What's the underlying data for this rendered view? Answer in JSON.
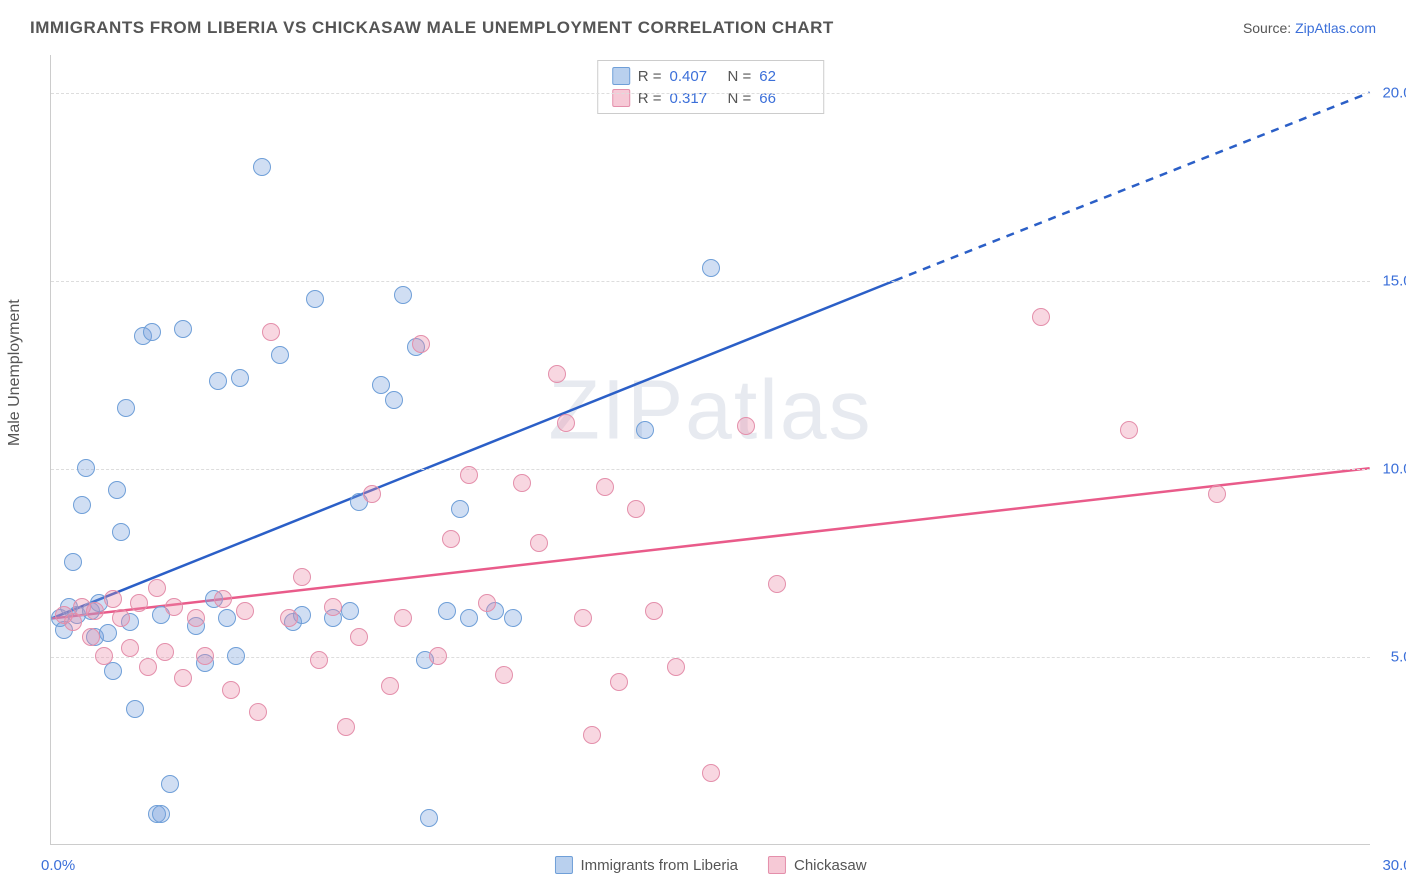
{
  "title": "IMMIGRANTS FROM LIBERIA VS CHICKASAW MALE UNEMPLOYMENT CORRELATION CHART",
  "source_prefix": "Source: ",
  "source_link": "ZipAtlas.com",
  "y_axis_title": "Male Unemployment",
  "watermark": {
    "left": "ZIP",
    "right": "atlas"
  },
  "chart": {
    "type": "scatter",
    "background_color": "#ffffff",
    "grid_color": "#dddddd",
    "axis_color": "#cccccc",
    "xlim": [
      0,
      30
    ],
    "ylim": [
      0,
      21
    ],
    "x_ticks_shown": [
      0.0,
      30.0
    ],
    "y_ticks_shown": [
      5.0,
      10.0,
      15.0,
      20.0
    ],
    "x_tick_format": "{v}%",
    "y_tick_format": "{v}%",
    "tick_label_color": "#3b6fd9",
    "tick_fontsize": 15,
    "marker_radius": 9,
    "marker_fill_opacity": 0.35,
    "series": [
      {
        "name": "Immigrants from Liberia",
        "color_fill": "rgba(120,160,220,0.35)",
        "color_stroke": "#6f9fd8",
        "swatch_fill": "#b9d0ee",
        "swatch_border": "#6f9fd8",
        "R": "0.407",
        "N": "62",
        "trend": {
          "start": [
            0,
            6.0
          ],
          "solid_end": [
            19.2,
            15.0
          ],
          "dashed_end": [
            30,
            20.0
          ],
          "stroke": "#2b5fc7",
          "width": 2.5
        },
        "points": [
          [
            0.2,
            6.0
          ],
          [
            0.3,
            5.7
          ],
          [
            0.4,
            6.3
          ],
          [
            0.5,
            7.5
          ],
          [
            0.6,
            6.1
          ],
          [
            0.7,
            9.0
          ],
          [
            0.8,
            10.0
          ],
          [
            0.9,
            6.2
          ],
          [
            1.0,
            5.5
          ],
          [
            1.1,
            6.4
          ],
          [
            1.3,
            5.6
          ],
          [
            1.4,
            4.6
          ],
          [
            1.5,
            9.4
          ],
          [
            1.6,
            8.3
          ],
          [
            1.7,
            11.6
          ],
          [
            1.8,
            5.9
          ],
          [
            1.9,
            3.6
          ],
          [
            2.1,
            13.5
          ],
          [
            2.3,
            13.6
          ],
          [
            2.4,
            0.8
          ],
          [
            2.5,
            0.8
          ],
          [
            2.5,
            6.1
          ],
          [
            2.7,
            1.6
          ],
          [
            3.0,
            13.7
          ],
          [
            3.3,
            5.8
          ],
          [
            3.5,
            4.8
          ],
          [
            3.7,
            6.5
          ],
          [
            3.8,
            12.3
          ],
          [
            4.0,
            6.0
          ],
          [
            4.2,
            5.0
          ],
          [
            4.3,
            12.4
          ],
          [
            4.8,
            18.0
          ],
          [
            5.2,
            13.0
          ],
          [
            5.5,
            5.9
          ],
          [
            5.7,
            6.1
          ],
          [
            6.0,
            14.5
          ],
          [
            6.4,
            6.0
          ],
          [
            6.8,
            6.2
          ],
          [
            7.0,
            9.1
          ],
          [
            7.5,
            12.2
          ],
          [
            7.8,
            11.8
          ],
          [
            8.0,
            14.6
          ],
          [
            8.3,
            13.2
          ],
          [
            8.5,
            4.9
          ],
          [
            8.6,
            0.7
          ],
          [
            9.0,
            6.2
          ],
          [
            9.3,
            8.9
          ],
          [
            9.5,
            6.0
          ],
          [
            10.1,
            6.2
          ],
          [
            10.5,
            6.0
          ],
          [
            13.5,
            11.0
          ],
          [
            15.0,
            15.3
          ]
        ]
      },
      {
        "name": "Chickasaw",
        "color_fill": "rgba(236,140,170,0.35)",
        "color_stroke": "#e48fab",
        "swatch_fill": "#f6c9d6",
        "swatch_border": "#e48fab",
        "R": "0.317",
        "N": "66",
        "trend": {
          "start": [
            0,
            6.0
          ],
          "solid_end": [
            30,
            10.0
          ],
          "dashed_end": null,
          "stroke": "#e95b8a",
          "width": 2.5
        },
        "points": [
          [
            0.3,
            6.1
          ],
          [
            0.5,
            5.9
          ],
          [
            0.7,
            6.3
          ],
          [
            0.9,
            5.5
          ],
          [
            1.0,
            6.2
          ],
          [
            1.2,
            5.0
          ],
          [
            1.4,
            6.5
          ],
          [
            1.6,
            6.0
          ],
          [
            1.8,
            5.2
          ],
          [
            2.0,
            6.4
          ],
          [
            2.2,
            4.7
          ],
          [
            2.4,
            6.8
          ],
          [
            2.6,
            5.1
          ],
          [
            2.8,
            6.3
          ],
          [
            3.0,
            4.4
          ],
          [
            3.3,
            6.0
          ],
          [
            3.5,
            5.0
          ],
          [
            3.9,
            6.5
          ],
          [
            4.1,
            4.1
          ],
          [
            4.4,
            6.2
          ],
          [
            4.7,
            3.5
          ],
          [
            5.0,
            13.6
          ],
          [
            5.4,
            6.0
          ],
          [
            5.7,
            7.1
          ],
          [
            6.1,
            4.9
          ],
          [
            6.4,
            6.3
          ],
          [
            6.7,
            3.1
          ],
          [
            7.0,
            5.5
          ],
          [
            7.3,
            9.3
          ],
          [
            7.7,
            4.2
          ],
          [
            8.0,
            6.0
          ],
          [
            8.4,
            13.3
          ],
          [
            8.8,
            5.0
          ],
          [
            9.1,
            8.1
          ],
          [
            9.5,
            9.8
          ],
          [
            9.9,
            6.4
          ],
          [
            10.3,
            4.5
          ],
          [
            10.7,
            9.6
          ],
          [
            11.1,
            8.0
          ],
          [
            11.5,
            12.5
          ],
          [
            11.7,
            11.2
          ],
          [
            12.1,
            6.0
          ],
          [
            12.3,
            2.9
          ],
          [
            12.6,
            9.5
          ],
          [
            12.9,
            4.3
          ],
          [
            13.3,
            8.9
          ],
          [
            13.7,
            6.2
          ],
          [
            14.2,
            4.7
          ],
          [
            15.0,
            1.9
          ],
          [
            15.8,
            11.1
          ],
          [
            16.5,
            6.9
          ],
          [
            22.5,
            14.0
          ],
          [
            24.5,
            11.0
          ],
          [
            26.5,
            9.3
          ]
        ]
      }
    ]
  },
  "legend_top_labels": {
    "R": "R =",
    "N": "N ="
  },
  "origin_label": "0.0%",
  "end_label": "30.0%"
}
